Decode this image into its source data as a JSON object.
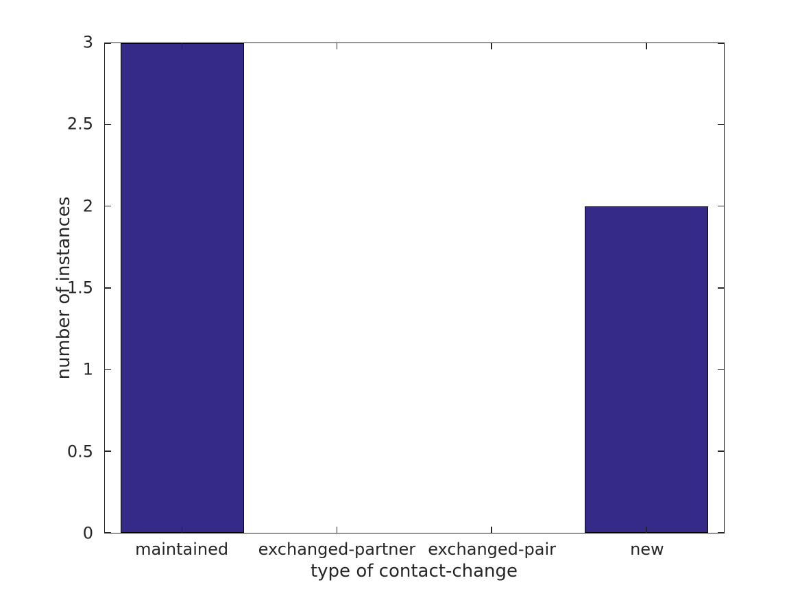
{
  "chart_data": {
    "type": "bar",
    "categories": [
      "maintained",
      "exchanged-partner",
      "exchanged-pair",
      "new"
    ],
    "values": [
      3,
      0,
      0,
      2
    ],
    "title": "",
    "xlabel": "type of contact-change",
    "ylabel": "number of instances",
    "ylim": [
      0,
      3
    ],
    "yticks": [
      0,
      0.5,
      1,
      1.5,
      2,
      2.5,
      3
    ],
    "ytick_labels": [
      "0",
      "0.5",
      "1",
      "1.5",
      "2",
      "2.5",
      "3"
    ],
    "bar_width_fraction": 0.8,
    "grid": false,
    "legend": null,
    "tick_direction": "in",
    "box": true,
    "colors": {
      "bar_fill": "#352A87",
      "bar_edge": "#000000",
      "axis": "#262626",
      "text": "#262626",
      "background": "#FFFFFF"
    }
  }
}
